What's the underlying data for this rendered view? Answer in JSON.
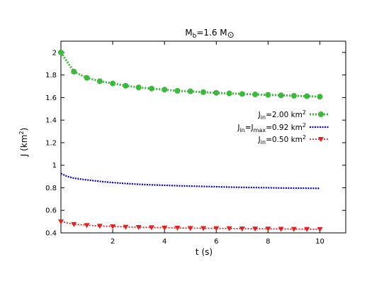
{
  "chart_data": {
    "type": "line",
    "title": {
      "main": "M",
      "sub": "b",
      "rest": "=1.6 M",
      "sym": "⊙"
    },
    "xlabel": "t (s)",
    "ylabel": {
      "main": "J (km",
      "sup": "2",
      "end": ")"
    },
    "xlim": [
      0,
      11
    ],
    "ylim": [
      0.4,
      2.1
    ],
    "xticks": [
      2,
      4,
      6,
      8,
      10
    ],
    "yticks": [
      0.4,
      0.6,
      0.8,
      1,
      1.2,
      1.4,
      1.6,
      1.8,
      2
    ],
    "grid": false,
    "legend_position": "right",
    "series": [
      {
        "legend": {
          "base": "J",
          "sub": "in",
          "rest": "=2.00 km",
          "sup": "2"
        },
        "color": "#3cb93c",
        "marker": "circle",
        "x": [
          0.0,
          0.5,
          1.0,
          1.5,
          2.0,
          2.5,
          3.0,
          3.5,
          4.0,
          4.5,
          5.0,
          5.5,
          6.0,
          6.5,
          7.0,
          7.5,
          8.0,
          8.5,
          9.0,
          9.5,
          10.0
        ],
        "values": [
          2.0,
          1.83,
          1.775,
          1.745,
          1.725,
          1.705,
          1.69,
          1.68,
          1.67,
          1.66,
          1.655,
          1.648,
          1.642,
          1.637,
          1.632,
          1.628,
          1.624,
          1.62,
          1.616,
          1.612,
          1.608
        ]
      },
      {
        "legend": {
          "base": "J",
          "sub": "in",
          "mid": "=J",
          "sub2": "max",
          "rest": "=0.92 km",
          "sup": "2"
        },
        "color": "#0000e6",
        "marker": "none",
        "x": [
          0.0,
          0.25,
          0.5,
          1.0,
          1.5,
          2.0,
          2.5,
          3.0,
          3.5,
          4.0,
          4.5,
          5.0,
          5.5,
          6.0,
          6.5,
          7.0,
          7.5,
          8.0,
          8.5,
          9.0,
          9.5,
          10.0
        ],
        "values": [
          0.925,
          0.9,
          0.885,
          0.87,
          0.857,
          0.846,
          0.838,
          0.831,
          0.826,
          0.822,
          0.818,
          0.815,
          0.812,
          0.809,
          0.806,
          0.804,
          0.802,
          0.8,
          0.798,
          0.797,
          0.796,
          0.795
        ]
      },
      {
        "legend": {
          "base": "J",
          "sub": "in",
          "rest": "=0.50 km",
          "sup": "2"
        },
        "color": "#e62020",
        "marker": "triangle-down",
        "x": [
          0.0,
          0.5,
          1.0,
          1.5,
          2.0,
          2.5,
          3.0,
          3.5,
          4.0,
          4.5,
          5.0,
          5.5,
          6.0,
          6.5,
          7.0,
          7.5,
          8.0,
          8.5,
          9.0,
          9.5,
          10.0
        ],
        "values": [
          0.5,
          0.477,
          0.468,
          0.461,
          0.457,
          0.453,
          0.45,
          0.448,
          0.446,
          0.444,
          0.442,
          0.441,
          0.44,
          0.439,
          0.438,
          0.437,
          0.436,
          0.435,
          0.434,
          0.433,
          0.432
        ]
      }
    ]
  }
}
